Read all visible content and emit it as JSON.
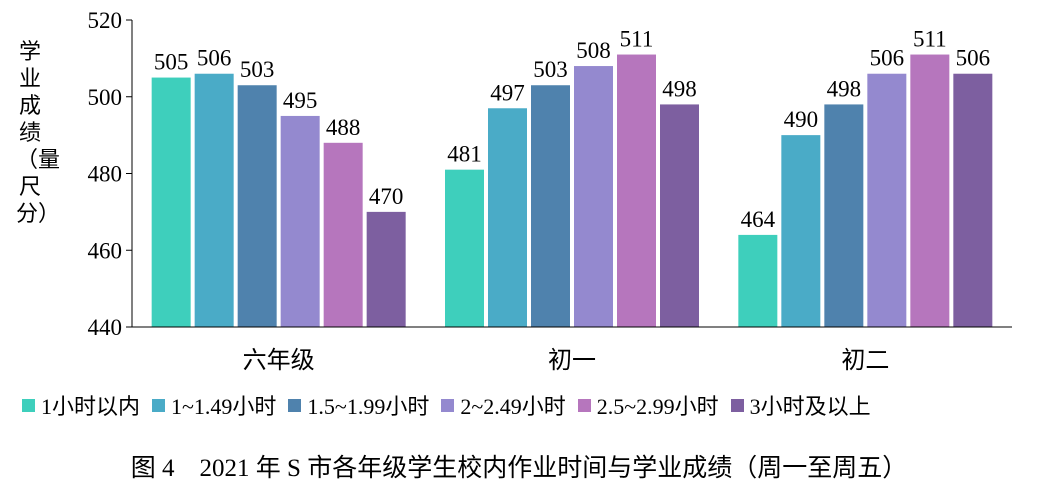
{
  "chart_data": {
    "type": "bar",
    "categories": [
      "六年级",
      "初一",
      "初二"
    ],
    "series": [
      {
        "name": "1小时以内",
        "color": "#3ecfbc",
        "values": [
          505,
          481,
          464
        ]
      },
      {
        "name": "1~1.49小时",
        "color": "#4aabc7",
        "values": [
          506,
          497,
          490
        ]
      },
      {
        "name": "1.5~1.99小时",
        "color": "#4f82ad",
        "values": [
          503,
          503,
          498
        ]
      },
      {
        "name": "2~2.49小时",
        "color": "#9489cf",
        "values": [
          495,
          508,
          506
        ]
      },
      {
        "name": "2.5~2.99小时",
        "color": "#b676bd",
        "values": [
          488,
          511,
          511
        ]
      },
      {
        "name": "3小时及以上",
        "color": "#7d5fa0",
        "values": [
          470,
          498,
          506
        ]
      }
    ],
    "ylabel": "学业成绩（量尺分）",
    "ylim": [
      440,
      520
    ],
    "yticks": [
      440,
      460,
      480,
      500,
      520
    ],
    "grid": false,
    "legend_position": "bottom"
  },
  "caption": "图 4　2021 年 S 市各年级学生校内作业时间与学业成绩（周一至周五）"
}
